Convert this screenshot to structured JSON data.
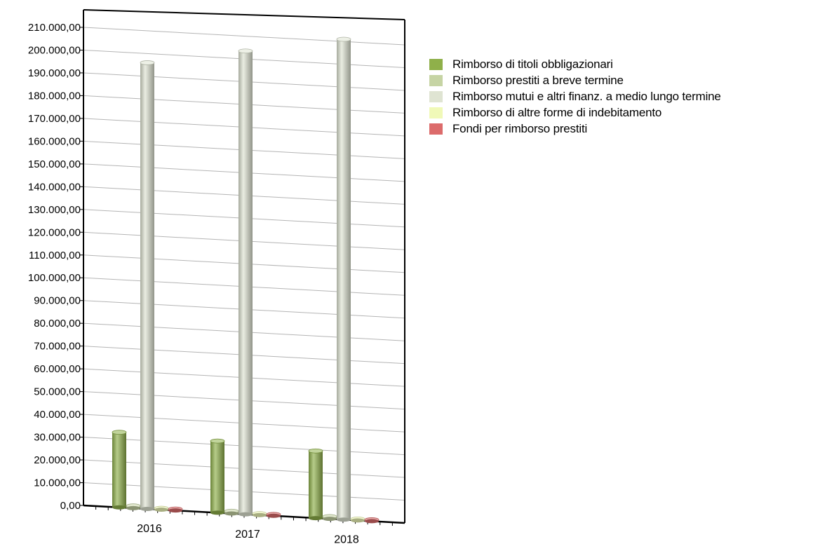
{
  "chart_data": {
    "type": "bar",
    "categories": [
      "2016",
      "2017",
      "2018"
    ],
    "series": [
      {
        "name": "Rimborso di titoli obbligazionari",
        "color": "#8fb04a",
        "values": [
          33000,
          31500,
          29500
        ]
      },
      {
        "name": "Rimborso prestiti a breve termine",
        "color": "#c6d4a4",
        "values": [
          1000,
          1000,
          1000
        ]
      },
      {
        "name": "Rimborso mutui e altri finanz. a medio lungo termine",
        "color": "#dfe4d2",
        "values": [
          196000,
          203500,
          211000
        ]
      },
      {
        "name": "Rimborso di altre forme di indebitamento",
        "color": "#f0f9b8",
        "values": [
          0,
          0,
          0
        ]
      },
      {
        "name": "Fondi per rimborso prestiti",
        "color": "#dc6b6b",
        "values": [
          0,
          0,
          0
        ]
      }
    ],
    "yticks": [
      "0,00",
      "10.000,00",
      "20.000,00",
      "30.000,00",
      "40.000,00",
      "50.000,00",
      "60.000,00",
      "70.000,00",
      "80.000,00",
      "90.000,00",
      "100.000,00",
      "110.000,00",
      "120.000,00",
      "130.000,00",
      "140.000,00",
      "150.000,00",
      "160.000,00",
      "170.000,00",
      "180.000,00",
      "190.000,00",
      "200.000,00",
      "210.000,00"
    ],
    "ylim": [
      0,
      220000
    ],
    "grid": true,
    "legend_position": "right"
  }
}
